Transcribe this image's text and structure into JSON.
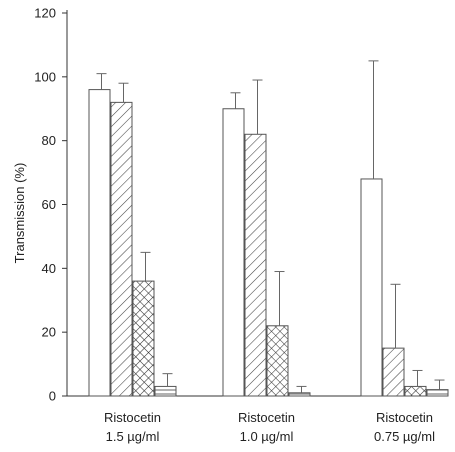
{
  "chart_data": {
    "type": "bar",
    "ylabel": "Transmission (%)",
    "ylim": [
      0,
      120
    ],
    "yticks": [
      0,
      20,
      40,
      60,
      80,
      100,
      120
    ],
    "grid": false,
    "categories": [
      {
        "line1": "Ristocetin",
        "line2": "1.5 µg/ml"
      },
      {
        "line1": "Ristocetin",
        "line2": "1.0 µg/ml"
      },
      {
        "line1": "Ristocetin",
        "line2": "0.75 µg/ml"
      }
    ],
    "series": [
      {
        "pattern": "open",
        "values": [
          96,
          90,
          68
        ],
        "errors": [
          5,
          5,
          37
        ]
      },
      {
        "pattern": "diagonal",
        "values": [
          92,
          82,
          15
        ],
        "errors": [
          6,
          17,
          20
        ]
      },
      {
        "pattern": "crosshatch",
        "values": [
          36,
          22,
          3
        ],
        "errors": [
          9,
          17,
          5
        ]
      },
      {
        "pattern": "horizontal",
        "values": [
          3,
          1,
          2
        ],
        "errors": [
          4,
          2,
          3
        ]
      }
    ],
    "colors": {
      "bar_stroke": "#555555",
      "axis": "#333333",
      "pattern": "#444444"
    }
  }
}
